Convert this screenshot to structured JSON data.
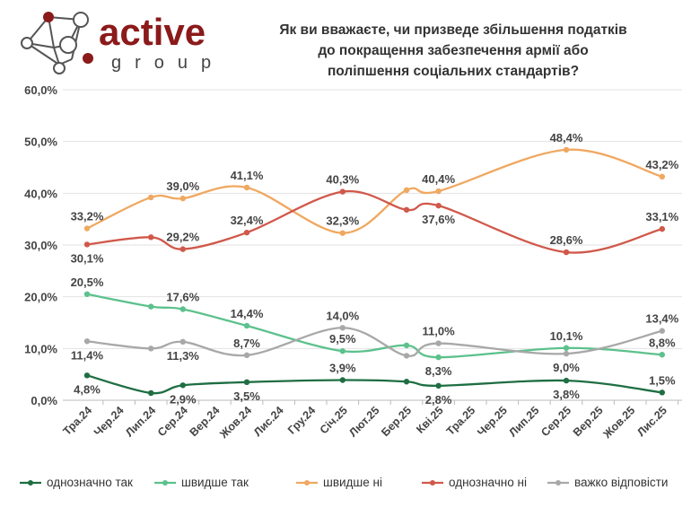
{
  "logo": {
    "word1": "active",
    "word2": "group",
    "color": "#8b1a1a"
  },
  "title_lines": [
    "Як ви вважаєте, чи призведе збільшення податків",
    "до покращення забезпечення армії або",
    "поліпшення соціальних стандартів?"
  ],
  "chart_data": {
    "type": "line",
    "title": "Як ви вважаєте, чи призведе збільшення податків до покращення забезпечення армії або поліпшення соціальних стандартів?",
    "categories": [
      "Тра.24",
      "Чер.24",
      "Лип.24",
      "Сер.24",
      "Вер.24",
      "Жов.24",
      "Лис.24",
      "Гру.24",
      "Січ.25",
      "Лют.25",
      "Бер.25",
      "Кві.25",
      "Тра.25",
      "Чер.25",
      "Лип.25",
      "Сер.25",
      "Вер.25",
      "Жов.25",
      "Лис.25"
    ],
    "ylim": [
      0,
      60
    ],
    "yticks": [
      "0,0%",
      "10,0%",
      "20,0%",
      "30,0%",
      "40,0%",
      "50,0%",
      "60,0%"
    ],
    "grid": true,
    "legend": "bottom",
    "series": [
      {
        "name": "однозначно так",
        "color": "#1f6e43",
        "values": [
          4.8,
          null,
          1.4,
          2.9,
          null,
          3.5,
          null,
          null,
          3.9,
          null,
          3.6,
          2.8,
          null,
          null,
          null,
          3.8,
          null,
          null,
          1.5
        ]
      },
      {
        "name": "швидше так",
        "color": "#5cc18c",
        "values": [
          20.5,
          null,
          18.1,
          17.6,
          null,
          14.4,
          null,
          null,
          9.5,
          null,
          10.6,
          8.3,
          null,
          null,
          null,
          10.1,
          null,
          null,
          8.8
        ]
      },
      {
        "name": "швидше ні",
        "color": "#f0a860",
        "values": [
          33.2,
          null,
          39.2,
          39.0,
          null,
          41.1,
          null,
          null,
          32.3,
          null,
          40.6,
          40.4,
          null,
          null,
          null,
          48.4,
          null,
          null,
          43.2
        ]
      },
      {
        "name": "однозначно ні",
        "color": "#d0584a",
        "values": [
          30.1,
          null,
          31.5,
          29.2,
          null,
          32.4,
          null,
          null,
          40.3,
          null,
          36.8,
          37.6,
          null,
          null,
          null,
          28.6,
          null,
          null,
          33.1
        ]
      },
      {
        "name": "важко відповісти",
        "color": "#a8a8a8",
        "values": [
          11.4,
          null,
          10.0,
          11.3,
          null,
          8.7,
          null,
          null,
          14.0,
          null,
          8.6,
          11.0,
          null,
          null,
          null,
          9.0,
          null,
          null,
          13.4
        ]
      }
    ]
  }
}
